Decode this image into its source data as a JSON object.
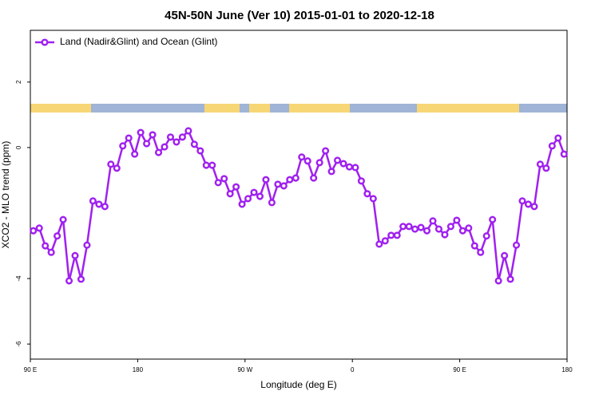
{
  "chart_data": {
    "type": "line",
    "title": "45N-50N June (Ver 10)   2015-01-01 to 2020-12-18",
    "x_label": "Longitude (deg E)",
    "y_label": "XCO2 - MLO trend (ppm)",
    "xlim": [
      90,
      540
    ],
    "ylim": [
      -6.46,
      3.58
    ],
    "xticks": [
      {
        "value": 90,
        "label": "90 E"
      },
      {
        "value": 180,
        "label": "180"
      },
      {
        "value": 270,
        "label": "90 W"
      },
      {
        "value": 360,
        "label": "0"
      },
      {
        "value": 450,
        "label": "90 E"
      },
      {
        "value": 540,
        "label": "180"
      }
    ],
    "yticks": [
      -6,
      -4,
      0,
      2
    ],
    "legend_position": "top-left",
    "x": [
      92.5,
      97.5,
      102.5,
      107.5,
      112.5,
      117.5,
      122.5,
      127.5,
      132.5,
      137.5,
      142.5,
      147.5,
      152.5,
      157.5,
      162.5,
      167.5,
      172.5,
      177.5,
      182.5,
      187.5,
      192.5,
      197.5,
      202.5,
      207.5,
      212.5,
      217.5,
      222.5,
      227.5,
      232.5,
      237.5,
      242.5,
      247.5,
      252.5,
      257.5,
      262.5,
      267.5,
      272.5,
      277.5,
      282.5,
      287.5,
      292.5,
      297.5,
      302.5,
      307.5,
      312.5,
      317.5,
      322.5,
      327.5,
      332.5,
      337.5,
      342.5,
      347.5,
      352.5,
      357.5,
      362.5,
      367.5,
      372.5,
      377.5,
      382.5,
      387.5,
      392.5,
      397.5,
      402.5,
      407.5,
      412.5,
      417.5,
      422.5,
      427.5,
      432.5,
      437.5,
      442.5,
      447.5,
      452.5,
      457.5,
      462.5,
      467.5,
      472.5,
      477.5,
      482.5,
      487.5,
      492.5,
      497.5,
      502.5,
      507.5,
      512.5,
      517.5,
      522.5,
      527.5,
      532.5,
      537.5
    ],
    "series": [
      {
        "name": "Land (Nadir&Glint) and Ocean (Glint)",
        "color": "#a020f0",
        "values": [
          -2.54,
          -2.46,
          -3.0,
          -3.2,
          -2.7,
          -2.2,
          -4.07,
          -3.3,
          -4.02,
          -2.98,
          -1.63,
          -1.73,
          -1.8,
          -0.51,
          -0.63,
          0.05,
          0.29,
          -0.2,
          0.46,
          0.12,
          0.39,
          -0.15,
          0.02,
          0.32,
          0.17,
          0.32,
          0.51,
          0.1,
          -0.1,
          -0.54,
          -0.54,
          -1.07,
          -0.95,
          -1.41,
          -1.2,
          -1.73,
          -1.56,
          -1.37,
          -1.49,
          -0.98,
          -1.68,
          -1.12,
          -1.17,
          -0.98,
          -0.93,
          -0.29,
          -0.41,
          -0.93,
          -0.46,
          -0.1,
          -0.73,
          -0.39,
          -0.49,
          -0.59,
          -0.61,
          -1.02,
          -1.41,
          -1.56,
          -2.95,
          -2.85,
          -2.68,
          -2.68,
          -2.41,
          -2.41,
          -2.49,
          -2.44,
          -2.54,
          -2.24,
          -2.49,
          -2.66,
          -2.41,
          -2.22,
          -2.54,
          -2.46,
          -3.0,
          -3.2,
          -2.7,
          -2.2,
          -4.07,
          -3.3,
          -4.02,
          -2.98,
          -1.63,
          -1.73,
          -1.8,
          -0.51,
          -0.63,
          0.05,
          0.29,
          -0.2
        ]
      }
    ]
  }
}
